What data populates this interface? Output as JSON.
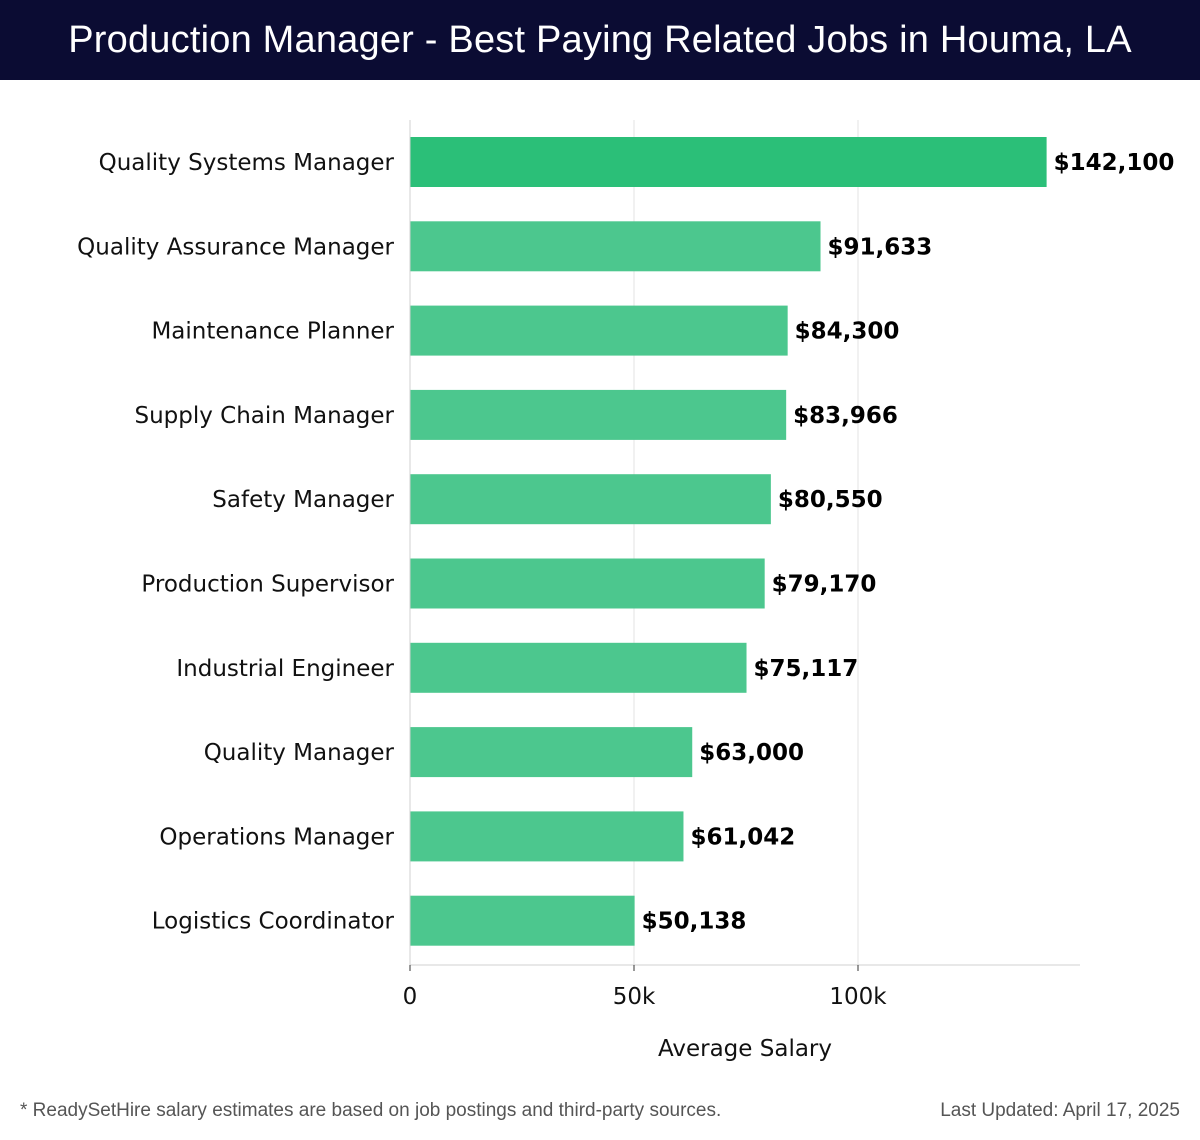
{
  "header": {
    "title": "Production Manager - Best Paying Related Jobs in Houma, LA"
  },
  "colors": {
    "header_bg": "#0b0c33",
    "top_bar": "#2bbf78",
    "bar": "#4cc78e",
    "grid": "#e3e3e3"
  },
  "chart_data": {
    "type": "bar",
    "orientation": "horizontal",
    "title": "Production Manager - Best Paying Related Jobs in Houma, LA",
    "xlabel": "Average Salary",
    "ylabel": "",
    "xlim": [
      0,
      150000
    ],
    "xticks": [
      0,
      50000,
      100000
    ],
    "xtick_labels": [
      "0",
      "50k",
      "100k"
    ],
    "grid": true,
    "categories": [
      "Quality Systems Manager",
      "Quality Assurance Manager",
      "Maintenance Planner",
      "Supply Chain Manager",
      "Safety Manager",
      "Production Supervisor",
      "Industrial Engineer",
      "Quality Manager",
      "Operations Manager",
      "Logistics Coordinator"
    ],
    "values": [
      142100,
      91633,
      84300,
      83966,
      80550,
      79170,
      75117,
      63000,
      61042,
      50138
    ],
    "value_labels": [
      "$142,100",
      "$91,633",
      "$84,300",
      "$83,966",
      "$80,550",
      "$79,170",
      "$75,117",
      "$63,000",
      "$61,042",
      "$50,138"
    ]
  },
  "footer": {
    "note": "* ReadySetHire salary estimates are based on job postings and third-party sources.",
    "updated": "Last Updated: April 17, 2025"
  }
}
